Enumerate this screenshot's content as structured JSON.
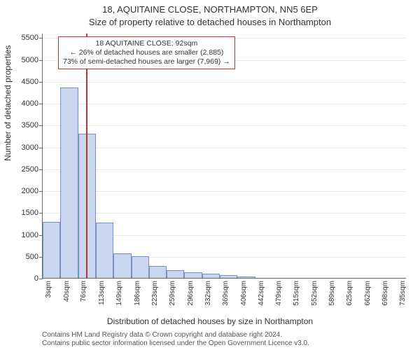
{
  "title": "18, AQUITAINE CLOSE, NORTHAMPTON, NN5 6EP",
  "subtitle": "Size of property relative to detached houses in Northampton",
  "ylabel": "Number of detached properties",
  "xlabel": "Distribution of detached houses by size in Northampton",
  "footer1": "Contains HM Land Registry data © Crown copyright and database right 2024.",
  "footer2": "Contains public sector information licensed under the Open Government Licence v3.0.",
  "chart": {
    "type": "histogram",
    "background_color": "#ffffff",
    "grid_color": "#e6e6e6",
    "axis_color": "#666666",
    "bar_fill": "#c9d6f0",
    "bar_stroke": "#7a8fbf",
    "marker_color": "#c23030",
    "anno_border_color": "#c23030",
    "ylim_max": 5600,
    "yticks": [
      0,
      500,
      1000,
      1500,
      2000,
      2500,
      3000,
      3500,
      4000,
      4500,
      5000,
      5500
    ],
    "x_min": 3,
    "x_max": 755,
    "x_bin_width": 36.6,
    "xticks": [
      3,
      40,
      76,
      113,
      149,
      186,
      223,
      259,
      296,
      332,
      369,
      406,
      442,
      479,
      515,
      552,
      589,
      625,
      662,
      698,
      735
    ],
    "xtick_labels": [
      "3sqm",
      "40sqm",
      "76sqm",
      "113sqm",
      "149sqm",
      "186sqm",
      "223sqm",
      "259sqm",
      "296sqm",
      "332sqm",
      "369sqm",
      "406sqm",
      "442sqm",
      "479sqm",
      "515sqm",
      "552sqm",
      "589sqm",
      "625sqm",
      "662sqm",
      "698sqm",
      "735sqm"
    ],
    "bars": [
      1280,
      4350,
      3300,
      1270,
      560,
      500,
      270,
      180,
      130,
      90,
      60,
      40,
      0,
      0,
      0,
      0,
      0,
      0,
      0,
      0
    ],
    "marker_x": 92,
    "annotation": {
      "line1": "18 AQUITAINE CLOSE: 92sqm",
      "line2": "← 26% of detached houses are smaller (2,885)",
      "line3": "73% of semi-detached houses are larger (7,969) →"
    },
    "title_fontsize": 13,
    "label_fontsize": 12,
    "tick_fontsize": 11,
    "footer_fontsize": 10
  }
}
